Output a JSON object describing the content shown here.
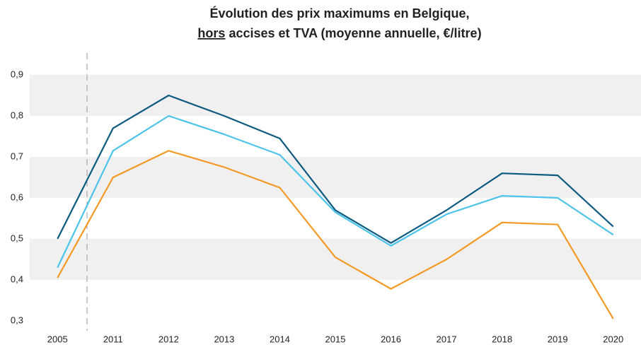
{
  "chart_data": {
    "type": "line",
    "title": [
      "Évolution des prix maximums en Belgique,",
      "hors",
      "accises et TVA (moyenne annuelle, €/litre)"
    ],
    "categories": [
      "2005",
      "2011",
      "2012",
      "2013",
      "2014",
      "2015",
      "2016",
      "2017",
      "2018",
      "2019",
      "2020"
    ],
    "series": [
      {
        "color": "#0d5a80",
        "values": [
          0.5,
          0.77,
          0.85,
          0.8,
          0.745,
          0.57,
          0.49,
          0.57,
          0.66,
          0.655,
          0.53
        ]
      },
      {
        "color": "#4cc3ea",
        "values": [
          0.43,
          0.715,
          0.8,
          0.755,
          0.705,
          0.565,
          0.483,
          0.56,
          0.605,
          0.6,
          0.51
        ]
      },
      {
        "color": "#f39a26",
        "values": [
          0.405,
          0.65,
          0.715,
          0.675,
          0.625,
          0.455,
          0.378,
          0.45,
          0.54,
          0.535,
          0.305
        ]
      }
    ],
    "ylim": [
      0.3,
      0.9
    ],
    "yticks": [
      {
        "value": 0.3,
        "label": "0,3"
      },
      {
        "value": 0.4,
        "label": "0,4"
      },
      {
        "value": 0.5,
        "label": "0,5"
      },
      {
        "value": 0.6,
        "label": "0,6"
      },
      {
        "value": 0.7,
        "label": "0,7"
      },
      {
        "value": 0.8,
        "label": "0,8"
      },
      {
        "value": 0.9,
        "label": "0,9"
      }
    ],
    "bands": true,
    "band_color": "#f0f0f0"
  }
}
